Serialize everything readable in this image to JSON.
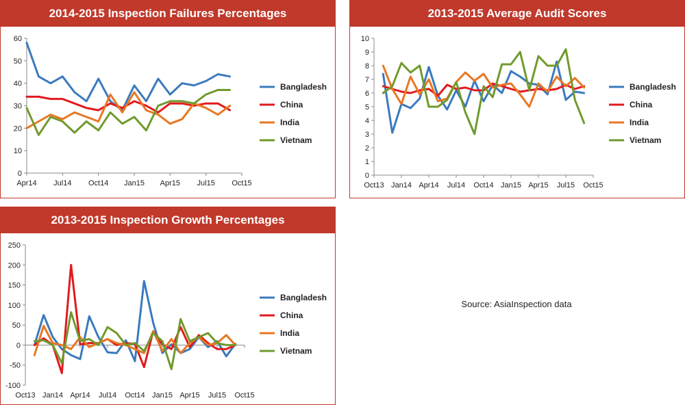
{
  "colors": {
    "Bangladesh": "#3a7abf",
    "China": "#e3191c",
    "India": "#e87722",
    "Vietnam": "#6f9a2c",
    "title_bg": "#c0392b"
  },
  "source_note": "Source: AsiaInspection data",
  "chart_data": [
    {
      "type": "line",
      "title": "2014-2015 Inspection Failures Percentages",
      "x_start_month": "2014-04",
      "x_end_month": "2015-10",
      "x_tick_labels": [
        "Apr14",
        "Jul14",
        "Oct14",
        "Jan15",
        "Apr15",
        "Jul15",
        "Oct15"
      ],
      "ylim": [
        0,
        60
      ],
      "y_ticks": [
        0,
        10,
        20,
        30,
        40,
        50,
        60
      ],
      "legend": "right",
      "series": [
        {
          "name": "Bangladesh",
          "values": [
            58,
            43,
            40,
            43,
            36,
            32,
            42,
            32,
            28,
            39,
            32,
            42,
            35,
            40,
            39,
            41,
            44,
            43
          ]
        },
        {
          "name": "China",
          "values": [
            34,
            34,
            33,
            33,
            31,
            29,
            28,
            31,
            29,
            32,
            30,
            27,
            31,
            31,
            30,
            31,
            31,
            28
          ]
        },
        {
          "name": "India",
          "values": [
            20,
            23,
            26,
            24,
            27,
            25,
            23,
            35,
            27,
            36,
            28,
            26,
            22,
            24,
            31,
            29,
            26,
            30
          ]
        },
        {
          "name": "Vietnam",
          "values": [
            29,
            17,
            25,
            23,
            18,
            23,
            19,
            27,
            22,
            25,
            19,
            30,
            32,
            32,
            31,
            35,
            37,
            37
          ]
        }
      ]
    },
    {
      "type": "line",
      "title": "2013-2015 Average Audit Scores",
      "x_start_month": "2013-11",
      "x_end_month": "2015-09",
      "x_axis_min": "2013-10",
      "x_axis_max": "2015-10",
      "x_tick_labels": [
        "Oct13",
        "Jan14",
        "Apr14",
        "Jul14",
        "Oct14",
        "Jan15",
        "Apr15",
        "Jul15",
        "Oct15"
      ],
      "ylim": [
        0,
        10
      ],
      "y_ticks": [
        0,
        1,
        2,
        3,
        4,
        5,
        6,
        7,
        8,
        9,
        10
      ],
      "legend": "right",
      "series": [
        {
          "name": "Bangladesh",
          "values": [
            7.4,
            3.1,
            5.2,
            4.9,
            5.6,
            7.9,
            5.8,
            4.8,
            6.2,
            5.0,
            6.9,
            5.4,
            6.6,
            6.0,
            7.6,
            7.2,
            6.7,
            6.6,
            5.9,
            8.3,
            5.5,
            6.1,
            6.0
          ]
        },
        {
          "name": "China",
          "values": [
            6.5,
            6.3,
            6.1,
            6.0,
            6.2,
            6.3,
            5.8,
            6.6,
            6.3,
            6.4,
            6.2,
            6.2,
            6.7,
            6.5,
            6.3,
            6.1,
            6.2,
            6.3,
            6.2,
            6.3,
            6.6,
            6.3,
            6.5
          ]
        },
        {
          "name": "India",
          "values": [
            8.0,
            6.3,
            5.2,
            7.2,
            5.9,
            7.0,
            5.4,
            5.6,
            6.8,
            7.5,
            6.9,
            7.4,
            6.4,
            6.6,
            6.7,
            5.9,
            5.0,
            6.7,
            6.1,
            7.2,
            6.5,
            7.1,
            6.4
          ]
        },
        {
          "name": "Vietnam",
          "values": [
            6.0,
            6.5,
            8.2,
            7.5,
            8.0,
            5.0,
            5.0,
            5.5,
            6.8,
            4.6,
            3.0,
            6.5,
            5.7,
            8.1,
            8.1,
            9.0,
            6.2,
            8.7,
            8.0,
            8.0,
            9.2,
            5.5,
            3.8
          ]
        }
      ]
    },
    {
      "type": "line",
      "title": "2013-2015 Inspection Growth Percentages",
      "x_start_month": "2013-11",
      "x_end_month": "2015-09",
      "x_axis_min": "2013-10",
      "x_axis_max": "2015-10",
      "x_tick_labels": [
        "Oct13",
        "Jan14",
        "Apr14",
        "Jul14",
        "Oct14",
        "Jan15",
        "Apr15",
        "Jul15",
        "Oct15"
      ],
      "ylim": [
        -100,
        250
      ],
      "y_ticks": [
        -100,
        -50,
        0,
        50,
        100,
        150,
        200,
        250
      ],
      "legend": "right",
      "series": [
        {
          "name": "Bangladesh",
          "values": [
            0,
            75,
            20,
            -10,
            -25,
            -35,
            72,
            20,
            -18,
            -20,
            12,
            -40,
            160,
            55,
            -20,
            2,
            -20,
            -10,
            20,
            -5,
            10,
            -28,
            3
          ]
        },
        {
          "name": "China",
          "values": [
            0,
            17,
            0,
            -70,
            200,
            2,
            5,
            5,
            15,
            0,
            5,
            3,
            -55,
            35,
            2,
            -10,
            45,
            -5,
            25,
            5,
            -10,
            -10,
            0
          ]
        },
        {
          "name": "India",
          "values": [
            -25,
            48,
            5,
            0,
            -10,
            20,
            -5,
            5,
            15,
            5,
            0,
            -10,
            -20,
            35,
            -15,
            15,
            -20,
            5,
            20,
            0,
            5,
            25,
            0
          ]
        },
        {
          "name": "Vietnam",
          "values": [
            10,
            12,
            0,
            -45,
            82,
            10,
            15,
            0,
            45,
            30,
            0,
            5,
            -15,
            30,
            10,
            -60,
            65,
            10,
            20,
            30,
            5,
            0,
            0
          ]
        }
      ]
    }
  ]
}
